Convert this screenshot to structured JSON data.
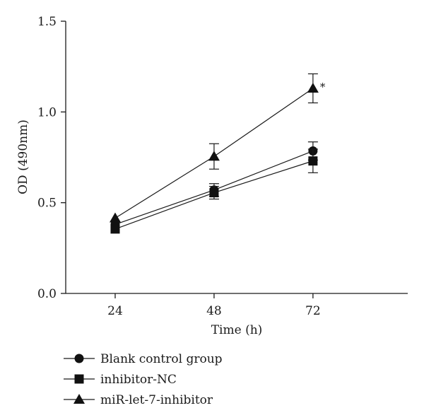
{
  "chart_data": {
    "type": "line",
    "title": "",
    "xlabel": "Time (h)",
    "ylabel": "OD (490nm)",
    "categories": [
      "24",
      "48",
      "72"
    ],
    "x": [
      24,
      48,
      72
    ],
    "xlim": [
      12,
      95
    ],
    "ylim": [
      0.0,
      1.5
    ],
    "yticks": [
      0.0,
      0.5,
      1.0,
      1.5
    ],
    "ytick_labels": [
      "0.0",
      "0.5",
      "1.0",
      "1.5"
    ],
    "grid": false,
    "legend_position": "bottom-left",
    "series": [
      {
        "name": "Blank control group",
        "marker": "circle",
        "values": [
          0.38,
          0.57,
          0.785
        ],
        "errors": [
          0.0,
          0.035,
          0.05
        ]
      },
      {
        "name": "inhibitor-NC",
        "marker": "square",
        "values": [
          0.355,
          0.555,
          0.73
        ],
        "errors": [
          0.0,
          0.035,
          0.065
        ]
      },
      {
        "name": "miR-let-7-inhibitor",
        "marker": "triangle",
        "values": [
          0.415,
          0.755,
          1.13
        ],
        "errors": [
          0.0,
          0.07,
          0.08
        ]
      }
    ],
    "annotations": [
      {
        "text": "*",
        "series": "miR-let-7-inhibitor",
        "x": 72
      }
    ]
  }
}
